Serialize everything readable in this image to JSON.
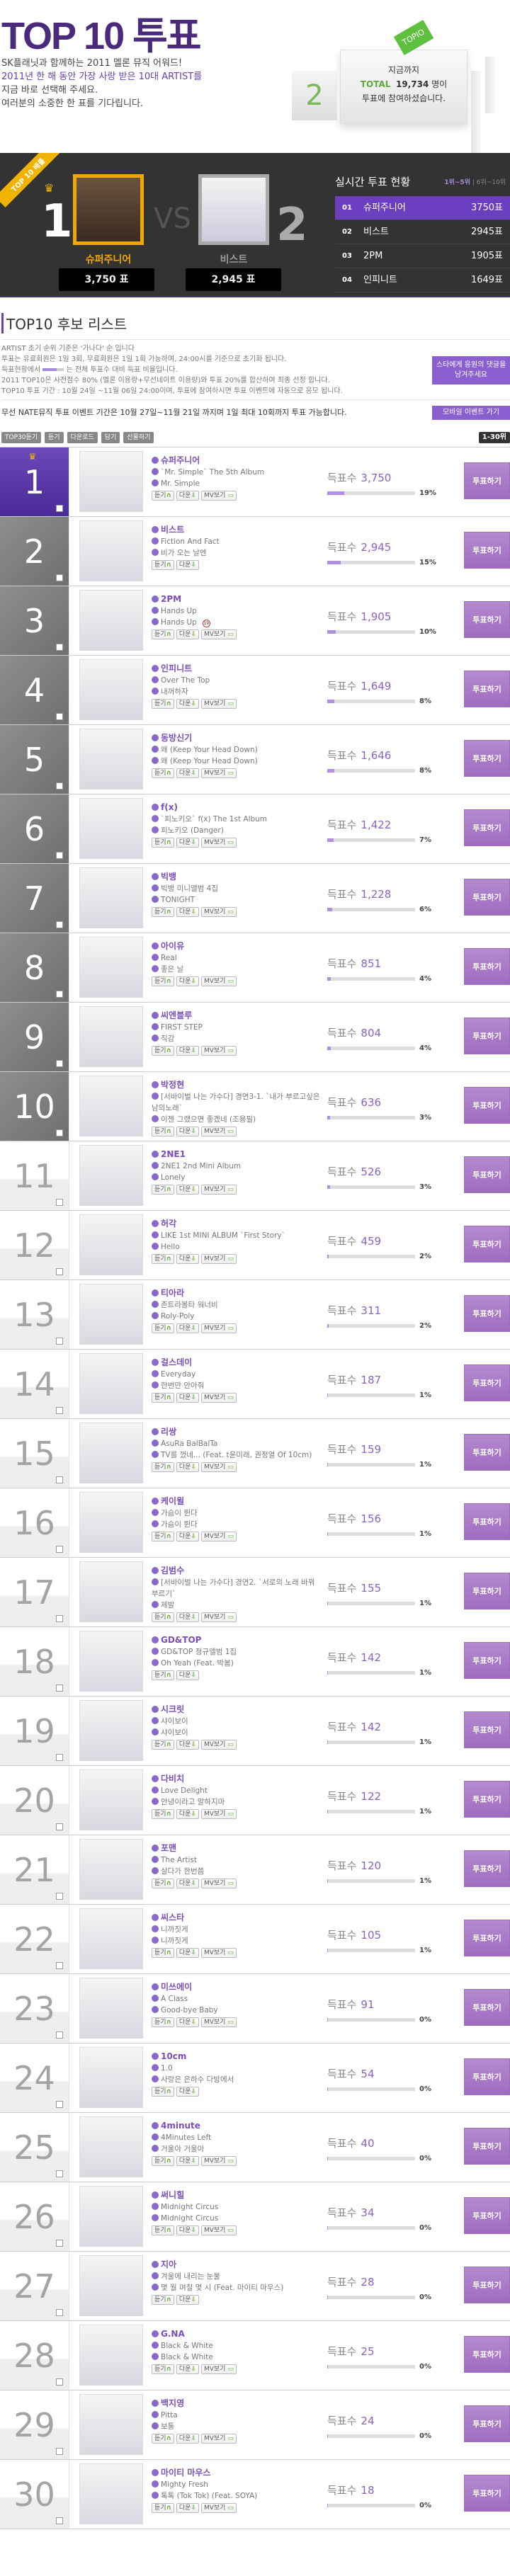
{
  "header": {
    "title": "TOP 10 투표",
    "intro": [
      "SK플래닛과 함께하는 2011 멜론 뮤직 어워드!",
      "2011년 한 해 동안 가장 사랑 받은 10대 ARTIST를",
      "지금 바로 선택해 주세요.",
      "여러분의 소중한 한 표를 기다립니다."
    ],
    "ballot": {
      "line1": "지금까지",
      "total_label": "TOTAL",
      "total": "19,734",
      "unit": "명이",
      "line3": "투표에 참여하셨습니다.",
      "sticker": "TOPIO",
      "cube": "2"
    }
  },
  "battle": {
    "ribbon": "TOP 10 배틀",
    "vs": "VS",
    "first": {
      "rank": "1",
      "name": "슈퍼주니어",
      "votes": "3,750 표"
    },
    "second": {
      "rank": "2",
      "name": "비스트",
      "votes": "2,945 표"
    },
    "realtime": {
      "title": "실시간 투표 현황",
      "tab1": "1위~5위",
      "tab2": "6위~10위",
      "items": [
        {
          "n": "01",
          "name": "슈퍼주니어",
          "votes": "3750표"
        },
        {
          "n": "02",
          "name": "비스트",
          "votes": "2945표"
        },
        {
          "n": "03",
          "name": "2PM",
          "votes": "1905표"
        },
        {
          "n": "04",
          "name": "인피니트",
          "votes": "1649표"
        },
        {
          "n": "05",
          "name": "동방신기",
          "votes": "1646표"
        }
      ]
    }
  },
  "info": {
    "heading": "TOP10 후보 리스트",
    "notes": [
      "ARTIST 초기 순위 기준은 '가나다' 순 입니다",
      "투표는 유료회원은 1일 3회, 무료회원은 1일 1회 가능하며, 24:00시를 기준으로 초기화 됩니다.",
      "2011 TOP10은 사전점수 80% (멜론 이용량+무선네이트 이용량)와 투표 20%를 합산하여 최종 선정 합니다.",
      "TOP10 투표 기간 : 10월 24일 ~11월 06일 24:00이며, 투표에 참여하시면 투표 이벤트에 자동으로 응모 됩니다."
    ],
    "bar_note_before": "득표현황에서",
    "bar_note_after": "는 전체 투표수 대비 득표 비율입니다.",
    "star_button": "스타에게 응원의 댓글을 남겨주세요",
    "nate": "무선 NATE뮤직 투표 이벤트 기간은 10월 27일~11월 21일 까지며 1일 최대 10회까지 투표 가능합니다.",
    "mobile_button": "모바일 이벤트 가기"
  },
  "toolbar": {
    "top30": "TOP30듣기",
    "listen": "듣기",
    "download": "다운로드",
    "add": "담기",
    "gift": "선물하기",
    "range": "1-30위"
  },
  "labels": {
    "votes": "득표수",
    "vote_button": "투표하기",
    "listen": "듣기",
    "down": "다운",
    "mv": "MV보기",
    "age": "19"
  },
  "colors": {
    "accent": "#7a4fb8",
    "gold": "#f0b400",
    "vote_button": "#a877c4"
  },
  "rows": [
    {
      "rank": "1",
      "artist": "슈퍼주니어",
      "album": "`Mr. Simple` The 5th Album",
      "song": "Mr. Simple",
      "votes": "3,750",
      "pct": 19,
      "mv": true
    },
    {
      "rank": "2",
      "artist": "비스트",
      "album": "Fiction And Fact",
      "song": "비가 오는 날엔",
      "votes": "2,945",
      "pct": 15,
      "mv": false
    },
    {
      "rank": "3",
      "artist": "2PM",
      "album": "Hands Up",
      "song": "Hands Up",
      "votes": "1,905",
      "pct": 10,
      "mv": true,
      "adult": true
    },
    {
      "rank": "4",
      "artist": "인피니트",
      "album": "Over The Top",
      "song": "내꺼하자",
      "votes": "1,649",
      "pct": 8,
      "mv": true
    },
    {
      "rank": "5",
      "artist": "동방신기",
      "album": "왜 (Keep Your Head Down)",
      "song": "왜 (Keep Your Head Down)",
      "votes": "1,646",
      "pct": 8,
      "mv": true
    },
    {
      "rank": "6",
      "artist": "f(x)",
      "album": "`피노키오` f(x) The 1st Album",
      "song": "피노키오 (Danger)",
      "votes": "1,422",
      "pct": 7,
      "mv": true
    },
    {
      "rank": "7",
      "artist": "빅뱅",
      "album": "빅뱅 미니앨범 4집",
      "song": "TONIGHT",
      "votes": "1,228",
      "pct": 6,
      "mv": true
    },
    {
      "rank": "8",
      "artist": "아이유",
      "album": "Real",
      "song": "좋은 날",
      "votes": "851",
      "pct": 4,
      "mv": true
    },
    {
      "rank": "9",
      "artist": "씨엔블루",
      "album": "FIRST STEP",
      "song": "직감",
      "votes": "804",
      "pct": 4,
      "mv": true
    },
    {
      "rank": "10",
      "artist": "박정현",
      "album": "[서바이벌 나는 가수다] 경연3-1. `내가 부르고싶은 남의노래`",
      "song": "이젠 그랬으면 좋겠네 (조용필)",
      "votes": "636",
      "pct": 3,
      "mv": true
    },
    {
      "rank": "11",
      "artist": "2NE1",
      "album": "2NE1 2nd Mini Album",
      "song": "Lonely",
      "votes": "526",
      "pct": 3,
      "mv": true
    },
    {
      "rank": "12",
      "artist": "허각",
      "album": "LIKE 1st MINI ALBUM `First Story`",
      "song": "Hello",
      "votes": "459",
      "pct": 2,
      "mv": true
    },
    {
      "rank": "13",
      "artist": "티아라",
      "album": "존트라볼타 워너비",
      "song": "Roly-Poly",
      "votes": "311",
      "pct": 2,
      "mv": true
    },
    {
      "rank": "14",
      "artist": "걸스데이",
      "album": "Everyday",
      "song": "한번만 안아줘",
      "votes": "187",
      "pct": 1,
      "mv": true
    },
    {
      "rank": "15",
      "artist": "리쌍",
      "album": "AsuRa BalBalTa",
      "song": "TV를 껐네... (Feat. t윤미래, 권정열 Of 10cm)",
      "votes": "159",
      "pct": 1,
      "mv": true
    },
    {
      "rank": "16",
      "artist": "케이윌",
      "album": "가슴이 뛴다",
      "song": "가슴이 뛴다",
      "votes": "156",
      "pct": 1,
      "mv": true
    },
    {
      "rank": "17",
      "artist": "김범수",
      "album": "[서바이벌 나는 가수다] 경연2. `서로의 노래 바꿔 부르기`",
      "song": "제발",
      "votes": "155",
      "pct": 1,
      "mv": true
    },
    {
      "rank": "18",
      "artist": "GD&TOP",
      "album": "GD&TOP 정규앨범 1집",
      "song": "Oh Yeah (Feat. 박봄)",
      "votes": "142",
      "pct": 1,
      "mv": false
    },
    {
      "rank": "19",
      "artist": "시크릿",
      "album": "샤이보이",
      "song": "샤이보이",
      "votes": "142",
      "pct": 1,
      "mv": true
    },
    {
      "rank": "20",
      "artist": "다비치",
      "album": "Love Delight",
      "song": "안녕이라고 말하지마",
      "votes": "122",
      "pct": 1,
      "mv": true
    },
    {
      "rank": "21",
      "artist": "포맨",
      "album": "The Artist",
      "song": "살다가 한번쯤",
      "votes": "120",
      "pct": 1,
      "mv": true
    },
    {
      "rank": "22",
      "artist": "씨스타",
      "album": "니까짓게",
      "song": "니까짓게",
      "votes": "105",
      "pct": 1,
      "mv": true
    },
    {
      "rank": "23",
      "artist": "미쓰에이",
      "album": "A Class",
      "song": "Good-bye Baby",
      "votes": "91",
      "pct": 0,
      "mv": true
    },
    {
      "rank": "24",
      "artist": "10cm",
      "album": "1.0",
      "song": "사랑은 은하수 다방에서",
      "votes": "54",
      "pct": 0,
      "mv": false
    },
    {
      "rank": "25",
      "artist": "4minute",
      "album": "4Minutes Left",
      "song": "거울아 거울아",
      "votes": "40",
      "pct": 0,
      "mv": true
    },
    {
      "rank": "26",
      "artist": "써니힐",
      "album": "Midnight Circus",
      "song": "Midnight Circus",
      "votes": "34",
      "pct": 0,
      "mv": true
    },
    {
      "rank": "27",
      "artist": "지아",
      "album": "겨울에 내리는 눈물",
      "song": "몇 월 며칠 몇 시 (Feat. 마이티 마우스)",
      "votes": "28",
      "pct": 0,
      "mv": false
    },
    {
      "rank": "28",
      "artist": "G.NA",
      "album": "Black & White",
      "song": "Black & White",
      "votes": "25",
      "pct": 0,
      "mv": true
    },
    {
      "rank": "29",
      "artist": "백지영",
      "album": "Pitta",
      "song": "보통",
      "votes": "24",
      "pct": 0,
      "mv": true
    },
    {
      "rank": "30",
      "artist": "마이티 마우스",
      "album": "Mighty Fresh",
      "song": "톡톡 (Tok Tok) (Feat. SOYA)",
      "votes": "18",
      "pct": 0,
      "mv": true
    }
  ]
}
